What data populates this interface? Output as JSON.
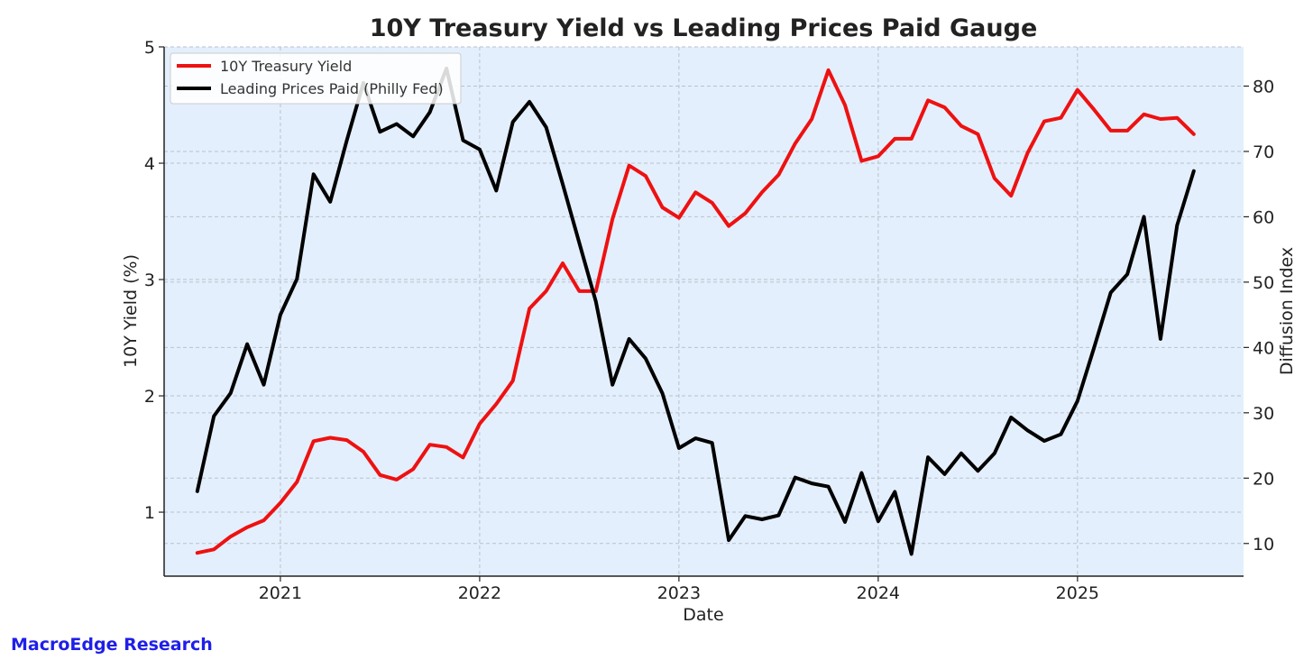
{
  "brand": {
    "label": "MacroEdge Research",
    "color": "#1f1fe8"
  },
  "chart_data": {
    "type": "line",
    "title": "10Y Treasury Yield vs Leading Prices Paid Gauge",
    "xlabel": "Date",
    "ylabel_left": "10Y Yield (%)",
    "ylabel_right": "Diffusion Index",
    "x_ticks": [
      "2021",
      "2022",
      "2023",
      "2024",
      "2025"
    ],
    "y_left_ticks": [
      "1",
      "2",
      "3",
      "4",
      "5"
    ],
    "y_right_ticks": [
      "10",
      "20",
      "30",
      "40",
      "50",
      "60",
      "70",
      "80"
    ],
    "xlim": [
      "2020-06",
      "2025-11"
    ],
    "ylim_left": [
      0.45,
      5
    ],
    "ylim_right": [
      5,
      86
    ],
    "grid": true,
    "background": "#e3effc",
    "legend_position": "top-left",
    "x": [
      "2020-08",
      "2020-09",
      "2020-10",
      "2020-11",
      "2020-12",
      "2021-01",
      "2021-02",
      "2021-03",
      "2021-04",
      "2021-05",
      "2021-06",
      "2021-07",
      "2021-08",
      "2021-09",
      "2021-10",
      "2021-11",
      "2021-12",
      "2022-01",
      "2022-02",
      "2022-03",
      "2022-04",
      "2022-05",
      "2022-06",
      "2022-07",
      "2022-08",
      "2022-09",
      "2022-10",
      "2022-11",
      "2022-12",
      "2023-01",
      "2023-02",
      "2023-03",
      "2023-04",
      "2023-05",
      "2023-06",
      "2023-07",
      "2023-08",
      "2023-09",
      "2023-10",
      "2023-11",
      "2023-12",
      "2024-01",
      "2024-02",
      "2024-03",
      "2024-04",
      "2024-05",
      "2024-06",
      "2024-07",
      "2024-08",
      "2024-09",
      "2024-10",
      "2024-11",
      "2024-12",
      "2025-01",
      "2025-02",
      "2025-03",
      "2025-04",
      "2025-05",
      "2025-06",
      "2025-07",
      "2025-08"
    ],
    "series": [
      {
        "name": "10Y Treasury Yield",
        "axis": "left",
        "color": "#ee1111",
        "values": [
          0.65,
          0.68,
          0.79,
          0.87,
          0.93,
          1.08,
          1.26,
          1.61,
          1.64,
          1.62,
          1.52,
          1.32,
          1.28,
          1.37,
          1.58,
          1.56,
          1.47,
          1.76,
          1.93,
          2.13,
          2.75,
          2.9,
          3.14,
          2.9,
          2.9,
          3.52,
          3.98,
          3.89,
          3.62,
          3.53,
          3.75,
          3.66,
          3.46,
          3.57,
          3.75,
          3.9,
          4.17,
          4.38,
          4.8,
          4.5,
          4.02,
          4.06,
          4.21,
          4.21,
          4.54,
          4.48,
          4.32,
          4.25,
          3.87,
          3.72,
          4.09,
          4.36,
          4.39,
          4.63,
          4.46,
          4.28,
          4.28,
          4.42,
          4.38,
          4.39,
          4.25
        ]
      },
      {
        "name": "Leading Prices Paid (Philly Fed)",
        "axis": "right",
        "color": "#000000",
        "values": [
          18,
          29.5,
          33,
          40.5,
          34.3,
          45,
          50.5,
          66.5,
          62.3,
          71.7,
          80.5,
          73,
          74.2,
          72.3,
          76,
          82.7,
          71.7,
          70.3,
          64,
          74.5,
          77.6,
          73.7,
          65,
          56,
          47,
          34.3,
          41.3,
          38.3,
          33,
          24.6,
          26.1,
          25.4,
          10.5,
          14.2,
          13.7,
          14.3,
          20.1,
          19.2,
          18.7,
          13.3,
          20.8,
          13.4,
          17.9,
          8.4,
          23.2,
          20.6,
          23.8,
          21.1,
          23.8,
          29.3,
          27.3,
          25.7,
          26.7,
          31.8,
          40,
          48.4,
          51.2,
          60,
          41.3,
          58.7,
          67
        ]
      }
    ]
  }
}
